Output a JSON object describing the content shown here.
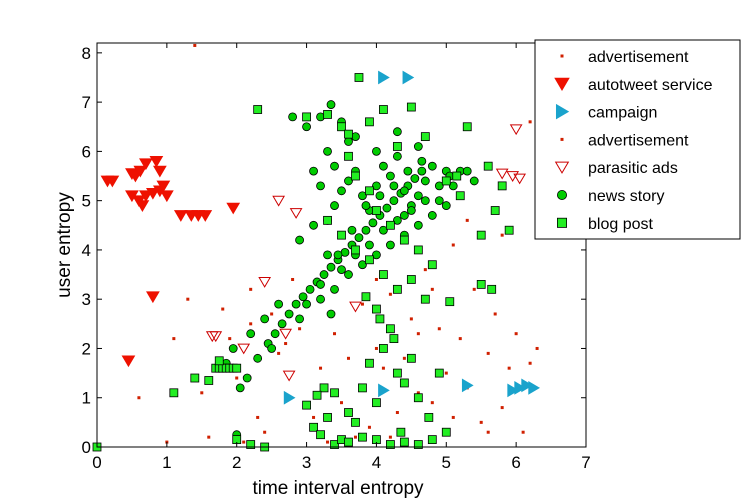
{
  "chart_data": {
    "type": "scatter",
    "title": "",
    "xlabel": "time interval entropy",
    "ylabel": "user entropy",
    "xlim": [
      0,
      7
    ],
    "ylim": [
      0,
      8.2
    ],
    "xticks": [
      0,
      1,
      2,
      3,
      4,
      5,
      6,
      7
    ],
    "yticks": [
      0,
      1,
      2,
      3,
      4,
      5,
      6,
      7,
      8
    ],
    "legend_position": "top-right",
    "series": [
      {
        "name": "advertisement",
        "marker": "dot",
        "color": "#d02000",
        "points": [
          [
            1.4,
            8.15
          ],
          [
            6.2,
            6.6
          ],
          [
            1.1,
            2.2
          ],
          [
            1.3,
            3.0
          ],
          [
            1.8,
            2.8
          ],
          [
            2.0,
            1.4
          ],
          [
            2.2,
            3.2
          ],
          [
            2.5,
            2.7
          ],
          [
            2.3,
            0.6
          ],
          [
            2.6,
            1.9
          ],
          [
            2.8,
            3.4
          ],
          [
            2.9,
            2.4
          ],
          [
            3.1,
            0.6
          ],
          [
            3.2,
            1.6
          ],
          [
            3.4,
            2.3
          ],
          [
            3.5,
            0.9
          ],
          [
            3.6,
            1.8
          ],
          [
            3.8,
            2.9
          ],
          [
            3.9,
            0.4
          ],
          [
            4.0,
            2.0
          ],
          [
            4.1,
            1.6
          ],
          [
            4.2,
            3.1
          ],
          [
            4.3,
            0.7
          ],
          [
            4.4,
            1.8
          ],
          [
            4.5,
            2.6
          ],
          [
            4.6,
            1.1
          ],
          [
            4.7,
            3.6
          ],
          [
            4.8,
            0.9
          ],
          [
            4.9,
            2.4
          ],
          [
            5.0,
            1.5
          ],
          [
            5.1,
            0.6
          ],
          [
            5.2,
            2.2
          ],
          [
            5.3,
            1.2
          ],
          [
            5.4,
            3.2
          ],
          [
            5.5,
            0.5
          ],
          [
            5.6,
            1.9
          ],
          [
            5.7,
            2.7
          ],
          [
            5.8,
            0.8
          ],
          [
            5.9,
            1.6
          ],
          [
            6.0,
            2.3
          ],
          [
            6.1,
            0.3
          ],
          [
            6.2,
            1.7
          ],
          [
            5.3,
            4.6
          ],
          [
            5.1,
            4.1
          ],
          [
            4.8,
            3.2
          ],
          [
            3.7,
            0.2
          ],
          [
            2.1,
            0.1
          ],
          [
            1.6,
            0.2
          ],
          [
            2.4,
            0.3
          ],
          [
            3.3,
            0.1
          ],
          [
            4.2,
            0.2
          ],
          [
            5.6,
            0.3
          ],
          [
            6.3,
            2.0
          ],
          [
            6.1,
            1.3
          ],
          [
            1.9,
            2.2
          ],
          [
            2.2,
            2.5
          ],
          [
            1.5,
            1.1
          ],
          [
            0.6,
            1.0
          ],
          [
            1.0,
            0.1
          ],
          [
            4.0,
            3.4
          ]
        ]
      },
      {
        "name": "autotweet service",
        "marker": "triangle-down-filled",
        "color": "#ee1100",
        "points": [
          [
            0.15,
            5.4
          ],
          [
            0.22,
            5.4
          ],
          [
            0.5,
            5.55
          ],
          [
            0.55,
            5.5
          ],
          [
            0.62,
            5.6
          ],
          [
            0.7,
            5.75
          ],
          [
            0.85,
            5.8
          ],
          [
            0.9,
            5.6
          ],
          [
            0.5,
            5.1
          ],
          [
            0.6,
            5.0
          ],
          [
            0.65,
            4.9
          ],
          [
            0.7,
            5.1
          ],
          [
            0.8,
            5.15
          ],
          [
            0.9,
            5.2
          ],
          [
            0.95,
            5.3
          ],
          [
            1.0,
            5.1
          ],
          [
            1.2,
            4.7
          ],
          [
            1.35,
            4.7
          ],
          [
            1.45,
            4.7
          ],
          [
            1.55,
            4.7
          ],
          [
            1.95,
            4.85
          ],
          [
            0.8,
            3.05
          ],
          [
            0.45,
            1.75
          ]
        ]
      },
      {
        "name": "campaign",
        "marker": "triangle-right-filled",
        "color": "#1aa3cc",
        "points": [
          [
            4.1,
            7.5
          ],
          [
            4.45,
            7.5
          ],
          [
            2.75,
            1.0
          ],
          [
            4.1,
            1.15
          ],
          [
            5.3,
            1.25
          ],
          [
            5.95,
            1.15
          ],
          [
            6.05,
            1.2
          ],
          [
            6.15,
            1.25
          ],
          [
            6.25,
            1.2
          ]
        ]
      },
      {
        "name": "advertisement",
        "marker": "dot",
        "color": "#d02000",
        "points": [
          [
            4.6,
            2.3
          ],
          [
            3.0,
            0.8
          ],
          [
            2.7,
            2.1
          ],
          [
            5.8,
            4.3
          ]
        ]
      },
      {
        "name": "parasitic ads",
        "marker": "triangle-down-open",
        "color": "#cc0000",
        "points": [
          [
            6.0,
            6.45
          ],
          [
            5.8,
            5.55
          ],
          [
            5.95,
            5.5
          ],
          [
            6.05,
            5.45
          ],
          [
            2.6,
            5.0
          ],
          [
            2.85,
            4.75
          ],
          [
            2.4,
            3.35
          ],
          [
            3.7,
            2.85
          ],
          [
            1.65,
            2.25
          ],
          [
            1.7,
            2.25
          ],
          [
            2.1,
            2.0
          ],
          [
            2.7,
            2.3
          ],
          [
            2.75,
            1.45
          ]
        ]
      },
      {
        "name": "news story",
        "marker": "circle",
        "color": "#00cc00",
        "points": [
          [
            2.05,
            1.2
          ],
          [
            2.15,
            1.4
          ],
          [
            2.3,
            1.8
          ],
          [
            2.45,
            2.1
          ],
          [
            2.55,
            2.3
          ],
          [
            2.65,
            2.5
          ],
          [
            2.75,
            2.7
          ],
          [
            2.85,
            2.9
          ],
          [
            2.95,
            3.05
          ],
          [
            3.05,
            3.2
          ],
          [
            3.15,
            3.35
          ],
          [
            3.25,
            3.5
          ],
          [
            3.35,
            3.65
          ],
          [
            3.45,
            3.8
          ],
          [
            3.55,
            3.95
          ],
          [
            3.65,
            4.1
          ],
          [
            3.75,
            4.25
          ],
          [
            3.85,
            4.4
          ],
          [
            3.95,
            4.55
          ],
          [
            4.05,
            4.7
          ],
          [
            4.15,
            4.85
          ],
          [
            4.25,
            5.0
          ],
          [
            4.35,
            5.15
          ],
          [
            4.45,
            5.3
          ],
          [
            4.55,
            5.45
          ],
          [
            4.65,
            5.6
          ],
          [
            3.2,
            3.0
          ],
          [
            3.4,
            3.2
          ],
          [
            3.6,
            3.5
          ],
          [
            3.8,
            3.7
          ],
          [
            4.0,
            3.9
          ],
          [
            4.2,
            4.1
          ],
          [
            4.4,
            4.3
          ],
          [
            4.6,
            4.5
          ],
          [
            4.8,
            4.7
          ],
          [
            5.0,
            4.9
          ],
          [
            3.3,
            4.6
          ],
          [
            3.4,
            4.9
          ],
          [
            3.5,
            5.2
          ],
          [
            3.6,
            5.4
          ],
          [
            3.7,
            5.6
          ],
          [
            3.8,
            5.1
          ],
          [
            3.9,
            4.8
          ],
          [
            4.0,
            5.3
          ],
          [
            4.1,
            5.7
          ],
          [
            4.2,
            5.5
          ],
          [
            4.3,
            5.9
          ],
          [
            4.4,
            5.2
          ],
          [
            4.5,
            4.9
          ],
          [
            4.6,
            5.1
          ],
          [
            4.7,
            5.4
          ],
          [
            4.8,
            5.7
          ],
          [
            4.9,
            5.0
          ],
          [
            5.0,
            5.6
          ],
          [
            5.1,
            5.3
          ],
          [
            3.0,
            6.5
          ],
          [
            3.2,
            6.7
          ],
          [
            3.35,
            6.95
          ],
          [
            3.5,
            6.6
          ],
          [
            3.6,
            6.2
          ],
          [
            3.3,
            6.0
          ],
          [
            3.1,
            5.6
          ],
          [
            3.2,
            5.3
          ],
          [
            3.4,
            5.7
          ],
          [
            3.7,
            6.3
          ],
          [
            4.0,
            6.0
          ],
          [
            4.3,
            6.4
          ],
          [
            4.6,
            6.1
          ],
          [
            2.8,
            6.7
          ],
          [
            2.9,
            4.2
          ],
          [
            3.1,
            4.5
          ],
          [
            3.3,
            3.9
          ],
          [
            3.5,
            3.6
          ],
          [
            2.6,
            2.9
          ],
          [
            2.4,
            2.6
          ],
          [
            2.2,
            2.3
          ],
          [
            1.95,
            2.0
          ],
          [
            1.85,
            1.7
          ],
          [
            2.0,
            0.25
          ],
          [
            5.2,
            5.6
          ],
          [
            4.9,
            5.3
          ],
          [
            4.7,
            5.0
          ],
          [
            4.4,
            4.7
          ],
          [
            3.9,
            4.1
          ],
          [
            3.7,
            3.9
          ],
          [
            4.1,
            4.4
          ],
          [
            4.3,
            4.6
          ],
          [
            4.5,
            4.8
          ],
          [
            2.5,
            2.0
          ],
          [
            2.9,
            2.6
          ],
          [
            3.0,
            2.9
          ],
          [
            3.2,
            3.3
          ],
          [
            3.35,
            2.7
          ],
          [
            3.45,
            3.9
          ],
          [
            3.65,
            4.4
          ],
          [
            3.85,
            4.9
          ],
          [
            4.05,
            5.1
          ],
          [
            4.25,
            5.3
          ],
          [
            4.45,
            5.6
          ],
          [
            4.65,
            5.8
          ],
          [
            5.05,
            5.5
          ],
          [
            5.3,
            5.6
          ],
          [
            5.4,
            5.4
          ]
        ]
      },
      {
        "name": "blog post",
        "marker": "square",
        "color": "#22ee22",
        "points": [
          [
            3.75,
            7.5
          ],
          [
            2.3,
            6.85
          ],
          [
            3.0,
            6.7
          ],
          [
            3.3,
            6.75
          ],
          [
            3.5,
            6.5
          ],
          [
            3.6,
            6.35
          ],
          [
            3.9,
            6.6
          ],
          [
            4.1,
            6.85
          ],
          [
            4.5,
            6.9
          ],
          [
            5.3,
            6.5
          ],
          [
            3.6,
            5.9
          ],
          [
            3.7,
            5.5
          ],
          [
            3.9,
            5.2
          ],
          [
            4.0,
            4.8
          ],
          [
            4.2,
            4.5
          ],
          [
            4.4,
            4.2
          ],
          [
            4.6,
            4.0
          ],
          [
            4.8,
            3.7
          ],
          [
            5.0,
            5.4
          ],
          [
            5.2,
            5.1
          ],
          [
            5.5,
            4.3
          ],
          [
            5.7,
            4.8
          ],
          [
            5.9,
            4.4
          ],
          [
            5.6,
            5.7
          ],
          [
            5.8,
            5.3
          ],
          [
            5.15,
            5.5
          ],
          [
            4.3,
            6.1
          ],
          [
            4.7,
            6.3
          ],
          [
            3.3,
            4.6
          ],
          [
            3.5,
            4.3
          ],
          [
            3.7,
            4.0
          ],
          [
            3.9,
            3.8
          ],
          [
            4.1,
            3.5
          ],
          [
            4.3,
            3.2
          ],
          [
            4.5,
            3.4
          ],
          [
            4.7,
            3.0
          ],
          [
            5.05,
            2.95
          ],
          [
            5.5,
            3.3
          ],
          [
            5.65,
            3.2
          ],
          [
            3.85,
            3.05
          ],
          [
            4.0,
            2.8
          ],
          [
            4.05,
            2.6
          ],
          [
            4.2,
            2.4
          ],
          [
            4.25,
            2.2
          ],
          [
            4.1,
            2.0
          ],
          [
            3.9,
            1.7
          ],
          [
            4.3,
            1.5
          ],
          [
            4.5,
            1.8
          ],
          [
            4.9,
            1.5
          ],
          [
            4.4,
            1.3
          ],
          [
            4.6,
            1.0
          ],
          [
            3.8,
            1.2
          ],
          [
            4.0,
            0.9
          ],
          [
            3.6,
            0.7
          ],
          [
            3.3,
            0.6
          ],
          [
            3.1,
            0.4
          ],
          [
            3.25,
            1.2
          ],
          [
            3.15,
            1.05
          ],
          [
            3.0,
            0.85
          ],
          [
            1.7,
            1.6
          ],
          [
            1.75,
            1.6
          ],
          [
            1.8,
            1.6
          ],
          [
            1.85,
            1.6
          ],
          [
            1.9,
            1.6
          ],
          [
            1.95,
            1.6
          ],
          [
            2.0,
            1.6
          ],
          [
            1.6,
            1.35
          ],
          [
            1.75,
            1.75
          ],
          [
            1.4,
            1.4
          ],
          [
            1.1,
            1.1
          ],
          [
            2.2,
            0.05
          ],
          [
            2.0,
            0.15
          ],
          [
            3.2,
            0.25
          ],
          [
            3.4,
            0.05
          ],
          [
            3.5,
            0.15
          ],
          [
            3.6,
            0.1
          ],
          [
            3.8,
            0.2
          ],
          [
            4.0,
            0.15
          ],
          [
            4.2,
            0.05
          ],
          [
            4.4,
            0.1
          ],
          [
            4.6,
            0.05
          ],
          [
            0.0,
            0.0
          ],
          [
            5.0,
            0.3
          ],
          [
            4.8,
            0.15
          ],
          [
            2.4,
            0.0
          ],
          [
            3.4,
            1.1
          ],
          [
            3.7,
            0.5
          ],
          [
            4.35,
            0.3
          ],
          [
            4.75,
            0.6
          ]
        ]
      }
    ]
  }
}
